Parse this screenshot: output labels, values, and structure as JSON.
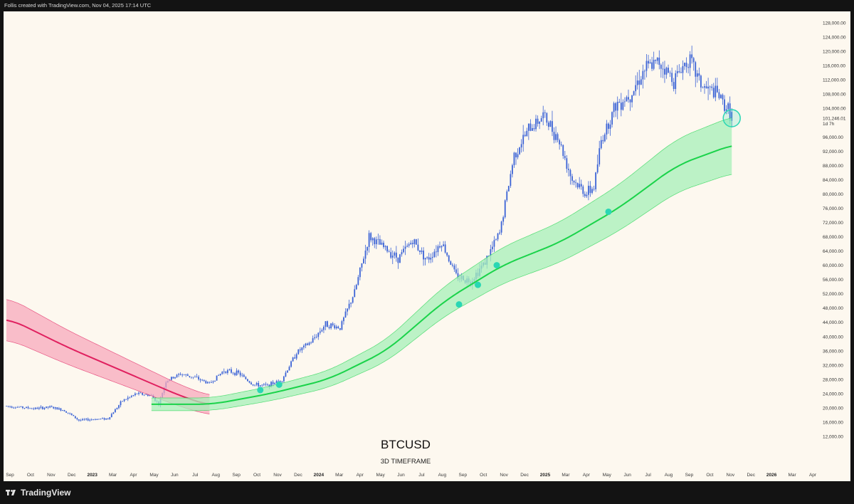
{
  "header": {
    "attribution": "Follis created with TradingView.com, Nov 04, 2025 17:14 UTC"
  },
  "footer": {
    "brand": "TradingView",
    "brand_icon": "tradingview-logo-icon"
  },
  "colors": {
    "candle": "#3b63d6",
    "lower_band_line": "#1ad34a",
    "lower_band_fill": "#a6f0b8",
    "upper_band_line": "#e0205f",
    "upper_band_fill": "#f7a9bc",
    "touch_marker": "#2ad6b4",
    "background": "#fdf8ef"
  },
  "chart_data": {
    "type": "candlestick",
    "symbol": "BTCUSD",
    "timeframe": "3D TIMEFRAME",
    "y_axis": {
      "ticks": [
        "128,000.00",
        "124,000.00",
        "120,000.00",
        "116,000.00",
        "112,000.00",
        "108,000.00",
        "104,000.00",
        "96,000.00",
        "92,000.00",
        "88,000.00",
        "84,000.00",
        "80,000.00",
        "76,000.00",
        "72,000.00",
        "68,000.00",
        "64,000.00",
        "60,000.00",
        "56,000.00",
        "52,000.00",
        "48,000.00",
        "44,000.00",
        "40,000.00",
        "36,000.00",
        "32,000.00",
        "28,000.00",
        "24,000.00",
        "20,000.00",
        "16,000.00",
        "12,000.00"
      ],
      "current_price": "101,246.01",
      "current_countdown": "1d 7h"
    },
    "x_axis": {
      "ticks": [
        {
          "label": "Sep",
          "bold": false
        },
        {
          "label": "Oct",
          "bold": false
        },
        {
          "label": "Nov",
          "bold": false
        },
        {
          "label": "Dec",
          "bold": false
        },
        {
          "label": "2023",
          "bold": true
        },
        {
          "label": "Mar",
          "bold": false
        },
        {
          "label": "Apr",
          "bold": false
        },
        {
          "label": "May",
          "bold": false
        },
        {
          "label": "Jun",
          "bold": false
        },
        {
          "label": "Jul",
          "bold": false
        },
        {
          "label": "Aug",
          "bold": false
        },
        {
          "label": "Sep",
          "bold": false
        },
        {
          "label": "Oct",
          "bold": false
        },
        {
          "label": "Nov",
          "bold": false
        },
        {
          "label": "Dec",
          "bold": false
        },
        {
          "label": "2024",
          "bold": true
        },
        {
          "label": "Mar",
          "bold": false
        },
        {
          "label": "Apr",
          "bold": false
        },
        {
          "label": "May",
          "bold": false
        },
        {
          "label": "Jun",
          "bold": false
        },
        {
          "label": "Jul",
          "bold": false
        },
        {
          "label": "Aug",
          "bold": false
        },
        {
          "label": "Sep",
          "bold": false
        },
        {
          "label": "Oct",
          "bold": false
        },
        {
          "label": "Nov",
          "bold": false
        },
        {
          "label": "Dec",
          "bold": false
        },
        {
          "label": "2025",
          "bold": true
        },
        {
          "label": "Mar",
          "bold": false
        },
        {
          "label": "Apr",
          "bold": false
        },
        {
          "label": "May",
          "bold": false
        },
        {
          "label": "Jun",
          "bold": false
        },
        {
          "label": "Jul",
          "bold": false
        },
        {
          "label": "Aug",
          "bold": false
        },
        {
          "label": "Sep",
          "bold": false
        },
        {
          "label": "Oct",
          "bold": false
        },
        {
          "label": "Nov",
          "bold": false
        },
        {
          "label": "Dec",
          "bold": false
        },
        {
          "label": "2026",
          "bold": true
        },
        {
          "label": "Mar",
          "bold": false
        },
        {
          "label": "Apr",
          "bold": false
        }
      ]
    },
    "price_path": [
      {
        "x": 0,
        "y": 20500
      },
      {
        "x": 2,
        "y": 19800
      },
      {
        "x": 3,
        "y": 20200
      },
      {
        "x": 4,
        "y": 19300
      },
      {
        "x": 5,
        "y": 16500
      },
      {
        "x": 6,
        "y": 16800
      },
      {
        "x": 7,
        "y": 17000
      },
      {
        "x": 8,
        "y": 22000
      },
      {
        "x": 9,
        "y": 24000
      },
      {
        "x": 10,
        "y": 23500
      },
      {
        "x": 10.5,
        "y": 21000
      },
      {
        "x": 11,
        "y": 27500
      },
      {
        "x": 12,
        "y": 29500
      },
      {
        "x": 13,
        "y": 28500
      },
      {
        "x": 14,
        "y": 26800
      },
      {
        "x": 15,
        "y": 30500
      },
      {
        "x": 16,
        "y": 29700
      },
      {
        "x": 17,
        "y": 26500
      },
      {
        "x": 18,
        "y": 26200
      },
      {
        "x": 19,
        "y": 28000
      },
      {
        "x": 20,
        "y": 35500
      },
      {
        "x": 21,
        "y": 38500
      },
      {
        "x": 22,
        "y": 43500
      },
      {
        "x": 23,
        "y": 42500
      },
      {
        "x": 24,
        "y": 52500
      },
      {
        "x": 25,
        "y": 68000
      },
      {
        "x": 26,
        "y": 65000
      },
      {
        "x": 27,
        "y": 62000
      },
      {
        "x": 28,
        "y": 67000
      },
      {
        "x": 29,
        "y": 61500
      },
      {
        "x": 30,
        "y": 66500
      },
      {
        "x": 31,
        "y": 57000
      },
      {
        "x": 32,
        "y": 55500
      },
      {
        "x": 33,
        "y": 61000
      },
      {
        "x": 34,
        "y": 69000
      },
      {
        "x": 35,
        "y": 91000
      },
      {
        "x": 36,
        "y": 98000
      },
      {
        "x": 37,
        "y": 102000
      },
      {
        "x": 38,
        "y": 96000
      },
      {
        "x": 39,
        "y": 84000
      },
      {
        "x": 40,
        "y": 80000
      },
      {
        "x": 40.5,
        "y": 82000
      },
      {
        "x": 41,
        "y": 95000
      },
      {
        "x": 42,
        "y": 105000
      },
      {
        "x": 43,
        "y": 108000
      },
      {
        "x": 44,
        "y": 115000
      },
      {
        "x": 45,
        "y": 117000
      },
      {
        "x": 46,
        "y": 112000
      },
      {
        "x": 47,
        "y": 118000
      },
      {
        "x": 48,
        "y": 110000
      },
      {
        "x": 49,
        "y": 108000
      },
      {
        "x": 50,
        "y": 102000
      }
    ],
    "lower_band_center": [
      {
        "x": 10,
        "y": 21000
      },
      {
        "x": 14,
        "y": 21000
      },
      {
        "x": 18,
        "y": 24000
      },
      {
        "x": 22,
        "y": 28000
      },
      {
        "x": 26,
        "y": 36000
      },
      {
        "x": 30,
        "y": 50000
      },
      {
        "x": 34,
        "y": 60000
      },
      {
        "x": 38,
        "y": 66500
      },
      {
        "x": 42,
        "y": 76000
      },
      {
        "x": 46,
        "y": 88000
      },
      {
        "x": 50,
        "y": 94000
      }
    ],
    "upper_band_center": [
      {
        "x": 0,
        "y": 45000
      },
      {
        "x": 4,
        "y": 37000
      },
      {
        "x": 8,
        "y": 30000
      },
      {
        "x": 12,
        "y": 23000
      },
      {
        "x": 14,
        "y": 20500
      }
    ],
    "touch_points": [
      {
        "x": 17.5,
        "y": 25000
      },
      {
        "x": 18.8,
        "y": 26500
      },
      {
        "x": 31.2,
        "y": 49000
      },
      {
        "x": 32.5,
        "y": 54500
      },
      {
        "x": 33.8,
        "y": 60000
      },
      {
        "x": 41.5,
        "y": 75000
      },
      {
        "x": 50,
        "y": 101246
      }
    ]
  }
}
